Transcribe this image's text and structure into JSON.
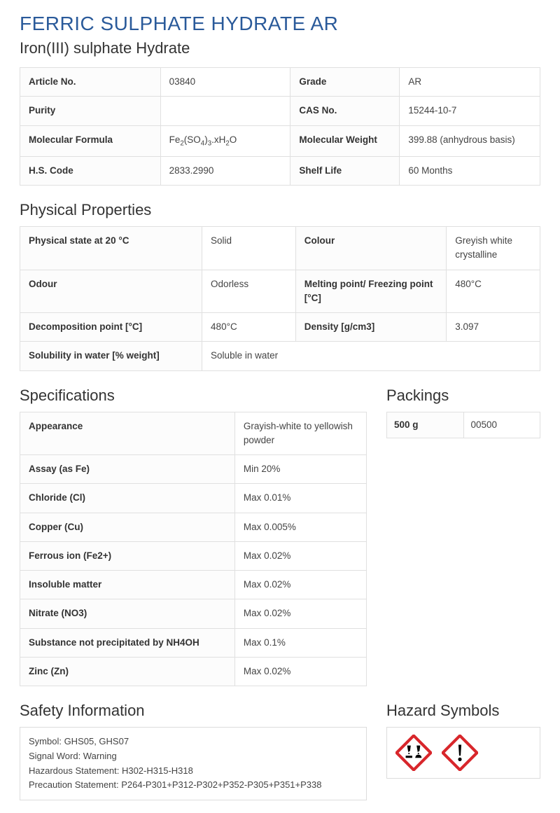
{
  "title": "FERRIC SULPHATE HYDRATE AR",
  "subtitle": "Iron(III) sulphate Hydrate",
  "colors": {
    "title": "#2a5a9a",
    "text": "#333333",
    "border": "#dcdcdc",
    "ghs_red": "#d8262b",
    "background": "#ffffff"
  },
  "info_table": {
    "rows": [
      {
        "k1": "Article No.",
        "v1": "03840",
        "k2": "Grade",
        "v2": "AR"
      },
      {
        "k1": "Purity",
        "v1": "",
        "k2": "CAS No.",
        "v2": "15244-10-7"
      },
      {
        "k1": "Molecular Formula",
        "v1_formula": "Fe2(SO4)3.xH2O",
        "k2": "Molecular Weight",
        "v2": "399.88 (anhydrous basis)"
      },
      {
        "k1": "H.S. Code",
        "v1": "2833.2990",
        "k2": "Shelf Life",
        "v2": "60 Months"
      }
    ]
  },
  "sections": {
    "physical": "Physical Properties",
    "specs": "Specifications",
    "packings": "Packings",
    "safety": "Safety Information",
    "hazard": "Hazard Symbols"
  },
  "physical_table": {
    "rows": [
      {
        "k1": "Physical state at 20 °C",
        "v1": "Solid",
        "k2": "Colour",
        "v2": "Greyish white crystalline"
      },
      {
        "k1": "Odour",
        "v1": "Odorless",
        "k2": "Melting point/ Freezing point [°C]",
        "v2": "480°C"
      },
      {
        "k1": "Decomposition point [°C]",
        "v1": "480°C",
        "k2": "Density [g/cm3]",
        "v2": "3.097"
      },
      {
        "k1": "Solubility in water [% weight]",
        "v1": "Soluble in water",
        "k2": "",
        "v2": ""
      }
    ]
  },
  "specs_table": {
    "rows": [
      {
        "k": "Appearance",
        "v": "Grayish-white to yellowish powder"
      },
      {
        "k": "Assay (as Fe)",
        "v": "Min 20%"
      },
      {
        "k": "Chloride (Cl)",
        "v": "Max 0.01%"
      },
      {
        "k": "Copper (Cu)",
        "v": "Max 0.005%"
      },
      {
        "k": "Ferrous ion (Fe2+)",
        "v": "Max 0.02%"
      },
      {
        "k": "Insoluble matter",
        "v": "Max 0.02%"
      },
      {
        "k": "Nitrate (NO3)",
        "v": "Max 0.02%"
      },
      {
        "k": "Substance not precipitated by NH4OH",
        "v": "Max 0.1%"
      },
      {
        "k": "Zinc (Zn)",
        "v": "Max 0.02%"
      }
    ]
  },
  "packings_table": {
    "rows": [
      {
        "k": "500 g",
        "v": "00500"
      }
    ]
  },
  "safety": {
    "lines": [
      "Symbol: GHS05, GHS07",
      "Signal Word: Warning",
      "Hazardous Statement: H302-H315-H318",
      "Precaution Statement: P264-P301+P312-P302+P352-P305+P351+P338"
    ]
  },
  "hazard_symbols": [
    "GHS05",
    "GHS07"
  ]
}
